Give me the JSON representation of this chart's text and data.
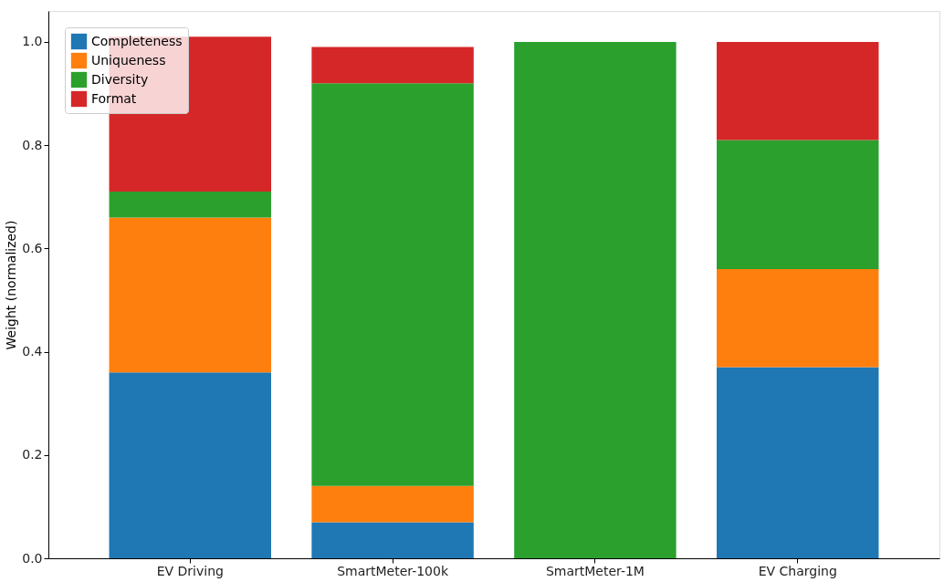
{
  "chart_data": {
    "type": "bar",
    "stacked": true,
    "ylabel": "Weight (normalized)",
    "categories": [
      "EV Driving",
      "SmartMeter-100k",
      "SmartMeter-1M",
      "EV Charging"
    ],
    "series": [
      {
        "name": "Completeness",
        "color": "#1f77b4",
        "values": [
          0.36,
          0.07,
          0,
          0.37
        ]
      },
      {
        "name": "Uniqueness",
        "color": "#ff7f0e",
        "values": [
          0.3,
          0.07,
          0,
          0.19
        ]
      },
      {
        "name": "Diversity",
        "color": "#2ca02c",
        "values": [
          0.05,
          0.78,
          1.0,
          0.25
        ]
      },
      {
        "name": "Format",
        "color": "#d62728",
        "values": [
          0.3,
          0.07,
          0,
          0.19
        ]
      }
    ],
    "ylim": [
      0,
      1.06
    ],
    "yticks": [
      {
        "value": 0,
        "label": "0.0"
      },
      {
        "value": 0.2,
        "label": "0.2"
      },
      {
        "value": 0.4,
        "label": "0.4"
      },
      {
        "value": 0.6,
        "label": "0.6"
      },
      {
        "value": 0.8,
        "label": "0.8"
      },
      {
        "value": 1.0,
        "label": "1.0"
      }
    ],
    "grid": false,
    "legend": "top left"
  }
}
